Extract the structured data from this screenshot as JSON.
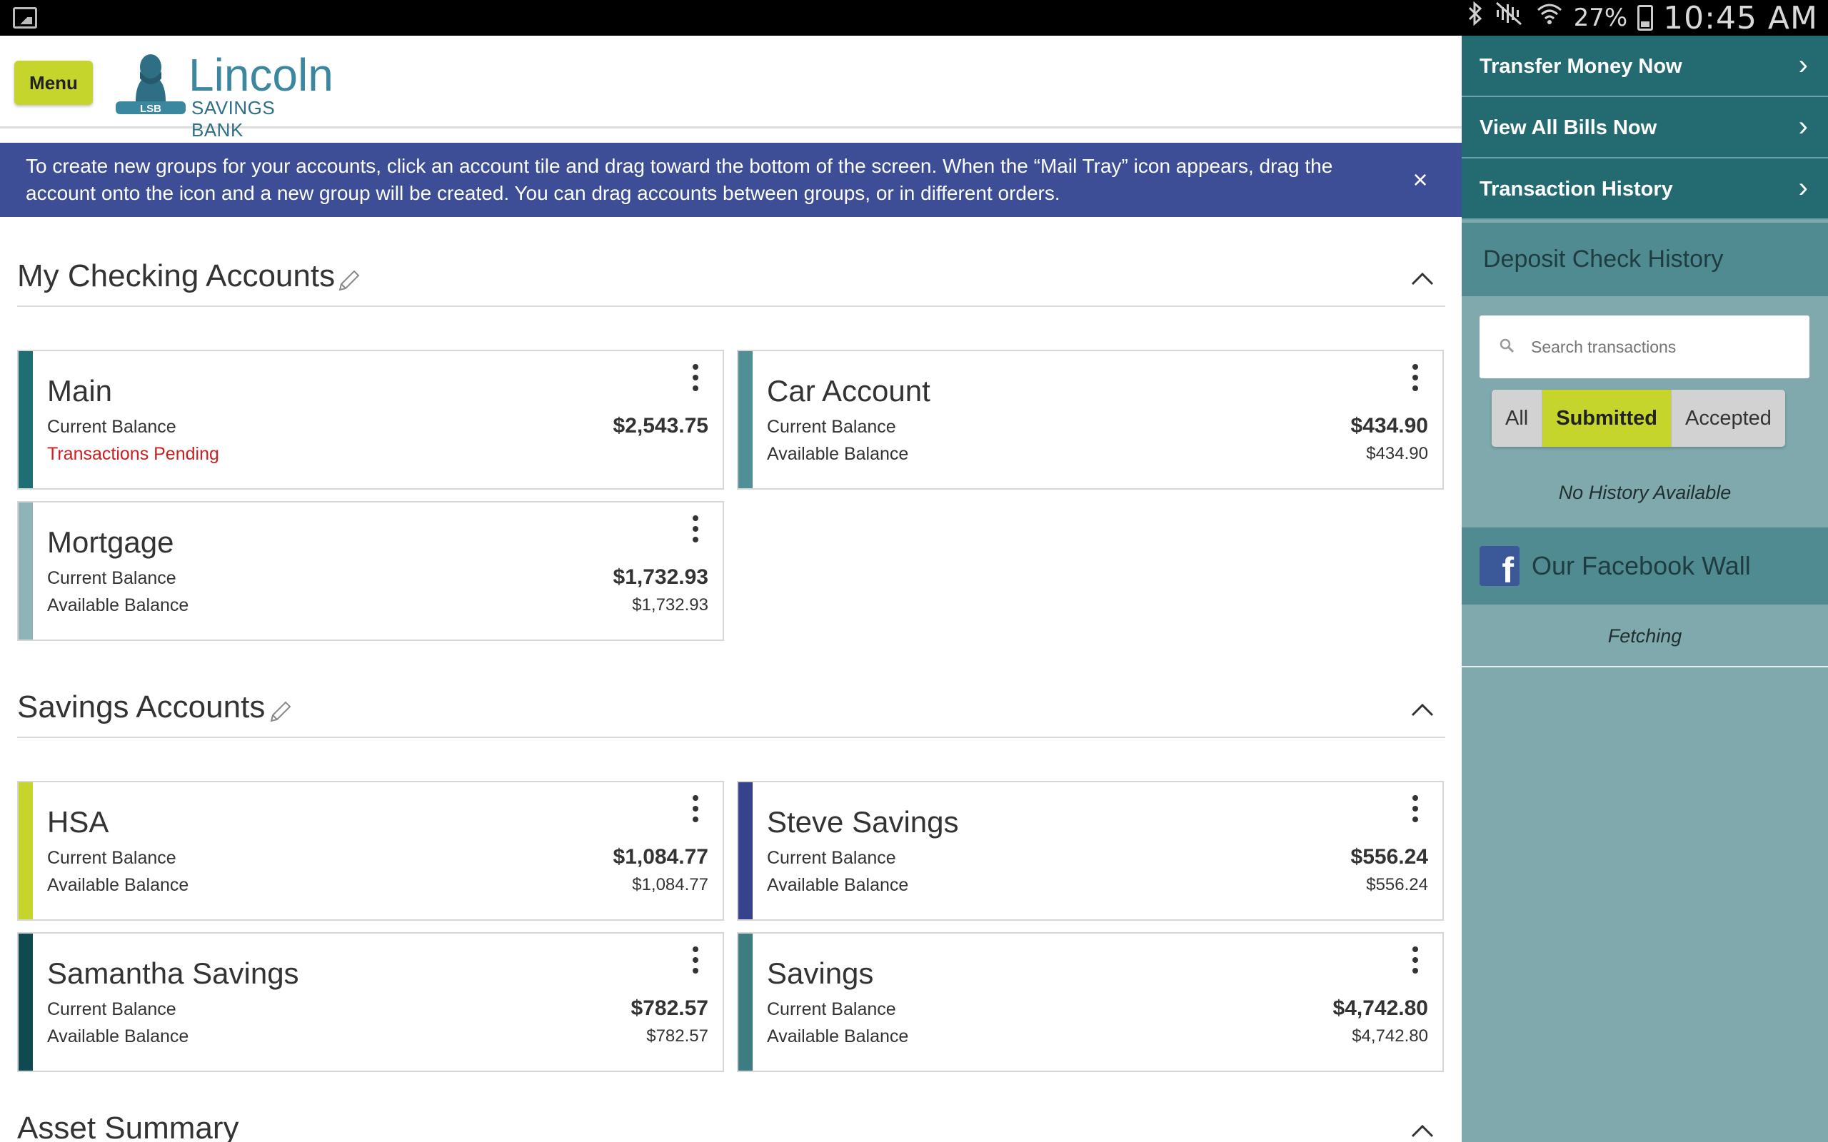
{
  "status_bar": {
    "battery_percent": "27%",
    "time": "10:45 AM",
    "icons": [
      "gallery-icon",
      "bluetooth-icon",
      "mute-icon",
      "wifi-icon",
      "battery-icon"
    ]
  },
  "header": {
    "menu_label": "Menu",
    "logo_name": "Lincoln",
    "logo_subtitle": "SAVINGS BANK"
  },
  "banner": {
    "text": "To create new groups for your accounts, click an account tile and drag toward the bottom of the screen. When the “Mail Tray” icon appears, drag the account onto the icon and a new group will be created. You can drag accounts between groups, or in different orders.",
    "close_symbol": "×"
  },
  "groups": [
    {
      "title": "My Checking Accounts",
      "accounts": [
        {
          "name": "Main",
          "label1": "Current Balance",
          "label2": "Transactions Pending",
          "amount1": "$2,543.75",
          "amount2": "",
          "color": "#1f6e73"
        },
        {
          "name": "Car Account",
          "label1": "Current Balance",
          "label2": "Available Balance",
          "amount1": "$434.90",
          "amount2": "$434.90",
          "color": "#4f8f95"
        },
        {
          "name": "Mortgage",
          "label1": "Current Balance",
          "label2": "Available Balance",
          "amount1": "$1,732.93",
          "amount2": "$1,732.93",
          "color": "#8fb4b8"
        }
      ]
    },
    {
      "title": "Savings Accounts",
      "accounts": [
        {
          "name": "HSA",
          "label1": "Current Balance",
          "label2": "Available Balance",
          "amount1": "$1,084.77",
          "amount2": "$1,084.77",
          "color": "#c5d52b"
        },
        {
          "name": "Steve Savings",
          "label1": "Current Balance",
          "label2": "Available Balance",
          "amount1": "$556.24",
          "amount2": "$556.24",
          "color": "#36438c"
        },
        {
          "name": "Samantha Savings",
          "label1": "Current Balance",
          "label2": "Available Balance",
          "amount1": "$782.57",
          "amount2": "$782.57",
          "color": "#0e4a4f"
        },
        {
          "name": "Savings",
          "label1": "Current Balance",
          "label2": "Available Balance",
          "amount1": "$4,742.80",
          "amount2": "$4,742.80",
          "color": "#3d7c80"
        }
      ]
    },
    {
      "title": "Asset Summary",
      "accounts": []
    }
  ],
  "sidebar": {
    "links": [
      {
        "label": "Transfer Money Now",
        "arrow": "›"
      },
      {
        "label": "View All Bills Now",
        "arrow": "›"
      },
      {
        "label": "Transaction History",
        "arrow": "›"
      }
    ],
    "deposit_title": "Deposit Check History",
    "search_placeholder": "Search transactions",
    "filters": [
      "All",
      "Submitted",
      "Accepted"
    ],
    "active_filter": "Submitted",
    "no_history": "No History Available",
    "facebook_icon_letter": "f",
    "facebook_title": "Our Facebook Wall",
    "facebook_status": "Fetching"
  },
  "colors": {
    "accent_lime": "#c5d52b",
    "banner_blue": "#3e4e96",
    "sidebar_teal": "#246b71",
    "sidebar_bg": "#7fa9ad",
    "pending_red": "#cc1f1f"
  }
}
